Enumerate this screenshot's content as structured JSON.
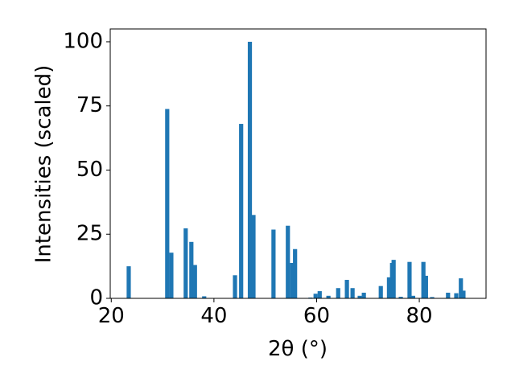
{
  "chart_data": {
    "type": "bar",
    "xlabel": "2θ (°)",
    "ylabel": "Intensities (scaled)",
    "x": [
      23.4,
      30.9,
      31.7,
      34.5,
      35.6,
      36.3,
      38.1,
      44.1,
      45.3,
      47.0,
      47.7,
      51.6,
      54.4,
      55.2,
      55.8,
      58.8,
      59.8,
      60.6,
      62.3,
      64.2,
      65.9,
      67.0,
      68.4,
      69.2,
      72.5,
      74.1,
      74.7,
      75.0,
      76.4,
      78.1,
      78.8,
      80.8,
      81.3,
      82.5,
      85.6,
      87.2,
      88.1,
      88.6
    ],
    "values": [
      12.5,
      73.8,
      17.8,
      27.3,
      22,
      13,
      0.8,
      9,
      68,
      100,
      32.5,
      26.8,
      28.3,
      13.8,
      19.2,
      0.3,
      1.8,
      2.8,
      1,
      4,
      7.2,
      4,
      1,
      2.2,
      4.8,
      8.2,
      13.8,
      15,
      0.6,
      14.2,
      1,
      14.2,
      8.8,
      0.5,
      2.2,
      2,
      7.8,
      3
    ],
    "color": "#1f77b4",
    "xlim": [
      19.8,
      93.0
    ],
    "ylim": [
      0,
      105
    ],
    "xticks": [
      20,
      40,
      60,
      80
    ],
    "yticks": [
      0,
      25,
      50,
      75,
      100
    ]
  }
}
